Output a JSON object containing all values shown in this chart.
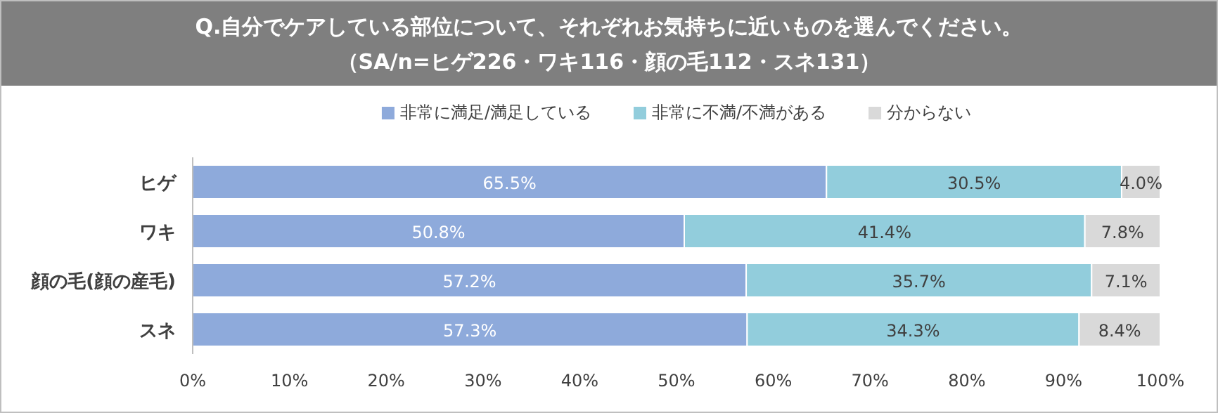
{
  "chart_data": {
    "type": "bar",
    "orientation": "horizontal",
    "stacked": true,
    "title": "Q.自分でケアしている部位について、それぞれお気持ちに近いものを選んでください。",
    "subtitle": "（SA/n=ヒゲ226・ワキ116・顔の毛112・スネ131）",
    "categories": [
      "ヒゲ",
      "ワキ",
      "顔の毛(顔の産毛)",
      "スネ"
    ],
    "series": [
      {
        "name": "非常に満足/満足している",
        "color": "#8eaadb",
        "values": [
          65.5,
          50.8,
          57.2,
          57.3
        ],
        "value_labels": [
          "65.5%",
          "50.8%",
          "57.2%",
          "57.3%"
        ]
      },
      {
        "name": "非常に不満/不満がある",
        "color": "#92cddc",
        "values": [
          30.5,
          41.4,
          35.7,
          34.3
        ],
        "value_labels": [
          "30.5%",
          "41.4%",
          "35.7%",
          "34.3%"
        ]
      },
      {
        "name": "分からない",
        "color": "#d9d9d9",
        "values": [
          4.0,
          7.8,
          7.1,
          8.4
        ],
        "value_labels": [
          "4.0%",
          "7.8%",
          "7.1%",
          "8.4%"
        ]
      }
    ],
    "xlim": [
      0,
      100
    ],
    "xticks": [
      {
        "value": 0,
        "label": "0%"
      },
      {
        "value": 10,
        "label": "10%"
      },
      {
        "value": 20,
        "label": "20%"
      },
      {
        "value": 30,
        "label": "30%"
      },
      {
        "value": 40,
        "label": "40%"
      },
      {
        "value": 50,
        "label": "50%"
      },
      {
        "value": 60,
        "label": "60%"
      },
      {
        "value": 70,
        "label": "70%"
      },
      {
        "value": 80,
        "label": "80%"
      },
      {
        "value": 90,
        "label": "90%"
      },
      {
        "value": 100,
        "label": "100%"
      }
    ],
    "legend": "top"
  }
}
